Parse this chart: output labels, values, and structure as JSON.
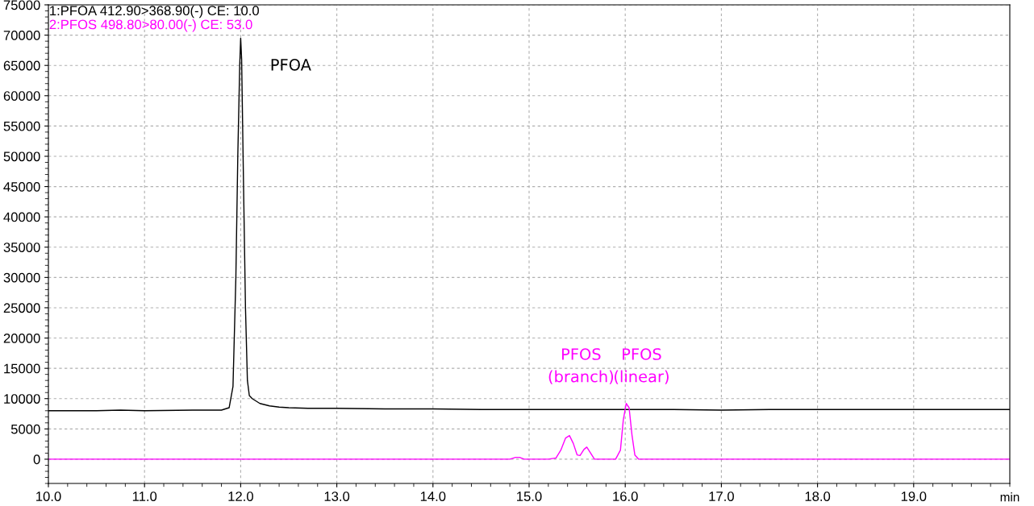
{
  "chart_data": {
    "type": "line",
    "xlabel": "min",
    "xlim": [
      10,
      20
    ],
    "xticks": [
      {
        "value": 10,
        "label": "10.0"
      },
      {
        "value": 11,
        "label": "11.0"
      },
      {
        "value": 12,
        "label": "12.0"
      },
      {
        "value": 13,
        "label": "13.0"
      },
      {
        "value": 14,
        "label": "14.0"
      },
      {
        "value": 15,
        "label": "15.0"
      },
      {
        "value": 16,
        "label": "16.0"
      },
      {
        "value": 17,
        "label": "17.0"
      },
      {
        "value": 18,
        "label": "18.0"
      },
      {
        "value": 19,
        "label": "19.0"
      }
    ],
    "ylim": [
      -4000,
      75000
    ],
    "yticks": [
      0,
      5000,
      10000,
      15000,
      20000,
      25000,
      30000,
      35000,
      40000,
      45000,
      50000,
      55000,
      60000,
      65000,
      70000,
      75000
    ],
    "grid": true,
    "legend": "top left",
    "line_style": "solid",
    "marker": "none",
    "series": [
      {
        "name": "1:PFOA 412.90>368.90(-) CE: 10.0",
        "color": "#000000",
        "x": [
          10.0,
          10.5,
          10.75,
          11.0,
          11.5,
          11.8,
          11.88,
          11.92,
          11.95,
          11.97,
          11.99,
          12.0,
          12.01,
          12.03,
          12.05,
          12.07,
          12.09,
          12.12,
          12.15,
          12.2,
          12.25,
          12.3,
          12.4,
          12.5,
          12.7,
          13.0,
          13.5,
          14.0,
          14.5,
          15.0,
          15.5,
          16.0,
          16.5,
          17.0,
          17.5,
          18.0,
          18.5,
          19.0,
          19.5,
          20.0
        ],
        "values": [
          8000,
          8000,
          8100,
          8000,
          8100,
          8100,
          8500,
          12000,
          30000,
          50000,
          65000,
          69500,
          66000,
          45000,
          25000,
          13000,
          10500,
          10000,
          9700,
          9200,
          9000,
          8800,
          8600,
          8500,
          8400,
          8400,
          8300,
          8300,
          8200,
          8200,
          8200,
          8200,
          8200,
          8100,
          8200,
          8200,
          8200,
          8200,
          8200,
          8200
        ]
      },
      {
        "name": "2:PFOS 498.80>80.00(-) CE: 53.0",
        "color": "#ff00ff",
        "x": [
          10.0,
          14.8,
          14.86,
          14.9,
          14.95,
          15.2,
          15.28,
          15.33,
          15.38,
          15.42,
          15.46,
          15.5,
          15.53,
          15.57,
          15.6,
          15.64,
          15.68,
          15.9,
          15.95,
          15.98,
          16.01,
          16.04,
          16.07,
          16.1,
          16.14,
          16.2,
          20.0
        ],
        "values": [
          0,
          0,
          300,
          300,
          0,
          0,
          200,
          1500,
          3500,
          3900,
          2600,
          700,
          600,
          1600,
          2000,
          1000,
          0,
          0,
          1500,
          6500,
          9200,
          8500,
          4000,
          700,
          0,
          0,
          0
        ]
      }
    ],
    "annotations": [
      "PFOA",
      "PFOS\n(branch)",
      "PFOS\n(linear)"
    ]
  }
}
